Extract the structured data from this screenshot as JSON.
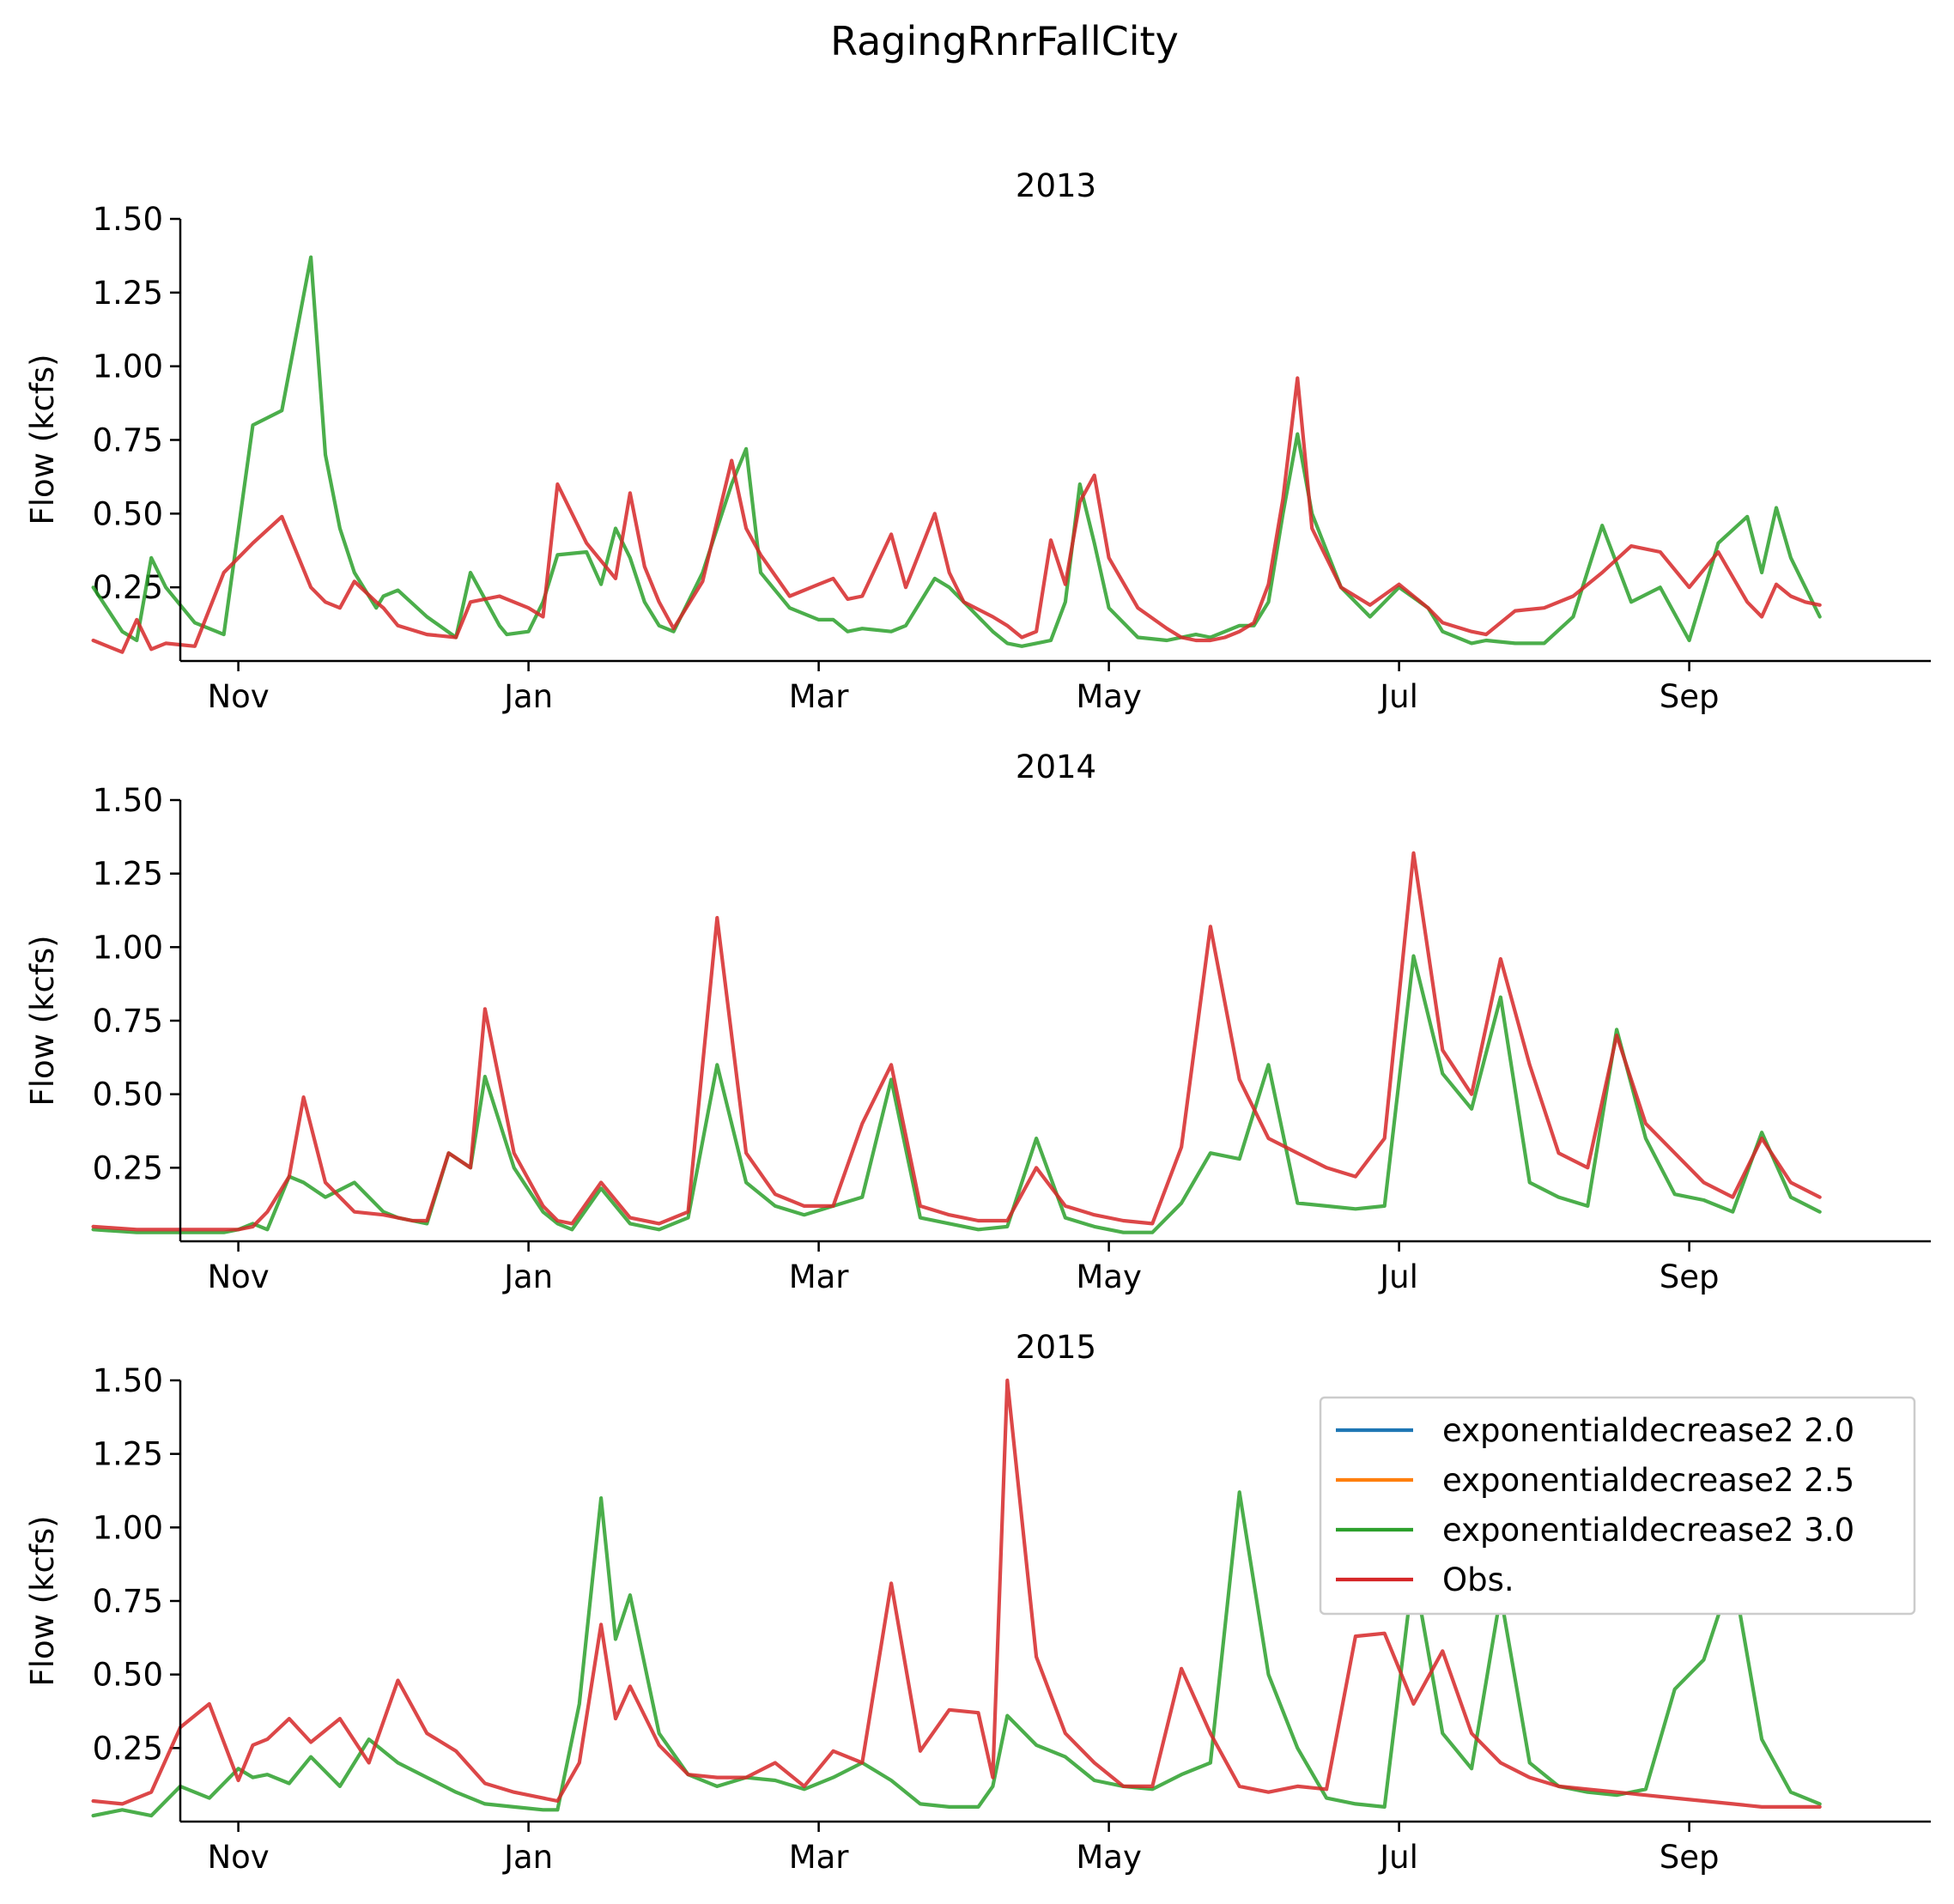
{
  "figure": {
    "suptitle": "RagingRnrFallCity"
  },
  "legend": {
    "location": "upper right of bottom panel",
    "entries": [
      {
        "label": "exponentialdecrease2 2.0",
        "color": "#1f77b4"
      },
      {
        "label": "exponentialdecrease2 2.5",
        "color": "#ff7f0e"
      },
      {
        "label": "exponentialdecrease2 3.0",
        "color": "#2ca02c"
      },
      {
        "label": "Obs.",
        "color": "#d62728"
      }
    ]
  },
  "chart_data": [
    {
      "type": "line",
      "title": "2013",
      "ylabel": "Flow (kcfs)",
      "xlabel": "",
      "ylim": [
        0,
        1.5
      ],
      "yticks": [
        "0.25",
        "0.50",
        "0.75",
        "1.00",
        "1.25",
        "1.50"
      ],
      "xticks": [
        "Nov",
        "Jan",
        "Mar",
        "May",
        "Jul",
        "Sep"
      ],
      "x_unit": "month index (0 = Oct 1)",
      "grid": false,
      "series": [
        {
          "name": "exponentialdecrease2 3.0",
          "color": "#2ca02c",
          "x": [
            0.0,
            0.2,
            0.3,
            0.4,
            0.5,
            0.7,
            0.9,
            1.1,
            1.3,
            1.5,
            1.6,
            1.7,
            1.8,
            1.95,
            2.0,
            2.1,
            2.3,
            2.5,
            2.6,
            2.8,
            2.85,
            3.0,
            3.1,
            3.2,
            3.4,
            3.5,
            3.6,
            3.7,
            3.8,
            3.9,
            4.0,
            4.2,
            4.4,
            4.5,
            4.6,
            4.8,
            5.0,
            5.1,
            5.2,
            5.3,
            5.5,
            5.6,
            5.8,
            5.9,
            6.0,
            6.2,
            6.3,
            6.4,
            6.5,
            6.6,
            6.7,
            6.8,
            6.9,
            7.0,
            7.2,
            7.4,
            7.5,
            7.6,
            7.7,
            7.8,
            7.9,
            8.0,
            8.1,
            8.2,
            8.3,
            8.4,
            8.6,
            8.8,
            9.0,
            9.2,
            9.3,
            9.5,
            9.6,
            9.8,
            10.0,
            10.2,
            10.4,
            10.6,
            10.8,
            11.0,
            11.2,
            11.4,
            11.5,
            11.6,
            11.7,
            11.8,
            11.9
          ],
          "values": [
            0.25,
            0.1,
            0.07,
            0.35,
            0.25,
            0.13,
            0.09,
            0.8,
            0.85,
            1.37,
            0.7,
            0.45,
            0.3,
            0.18,
            0.22,
            0.24,
            0.15,
            0.08,
            0.3,
            0.12,
            0.09,
            0.1,
            0.2,
            0.36,
            0.37,
            0.26,
            0.45,
            0.35,
            0.2,
            0.12,
            0.1,
            0.3,
            0.6,
            0.72,
            0.3,
            0.18,
            0.14,
            0.14,
            0.1,
            0.11,
            0.1,
            0.12,
            0.28,
            0.25,
            0.2,
            0.1,
            0.06,
            0.05,
            0.06,
            0.07,
            0.2,
            0.6,
            0.4,
            0.18,
            0.08,
            0.07,
            0.08,
            0.09,
            0.08,
            0.1,
            0.12,
            0.12,
            0.2,
            0.5,
            0.77,
            0.5,
            0.25,
            0.15,
            0.25,
            0.18,
            0.1,
            0.06,
            0.07,
            0.06,
            0.06,
            0.15,
            0.46,
            0.2,
            0.25,
            0.07,
            0.4,
            0.49,
            0.3,
            0.52,
            0.35,
            0.25,
            0.15
          ]
        },
        {
          "name": "Obs.",
          "color": "#d62728",
          "x": [
            0.0,
            0.2,
            0.3,
            0.4,
            0.5,
            0.7,
            0.9,
            1.1,
            1.3,
            1.5,
            1.6,
            1.7,
            1.8,
            1.95,
            2.0,
            2.1,
            2.3,
            2.5,
            2.6,
            2.8,
            2.85,
            3.0,
            3.1,
            3.2,
            3.4,
            3.5,
            3.6,
            3.7,
            3.8,
            3.9,
            4.0,
            4.2,
            4.4,
            4.5,
            4.6,
            4.8,
            5.0,
            5.1,
            5.2,
            5.3,
            5.5,
            5.6,
            5.8,
            5.9,
            6.0,
            6.2,
            6.3,
            6.4,
            6.5,
            6.6,
            6.7,
            6.8,
            6.9,
            7.0,
            7.2,
            7.4,
            7.5,
            7.6,
            7.7,
            7.8,
            7.9,
            8.0,
            8.1,
            8.2,
            8.3,
            8.4,
            8.6,
            8.8,
            9.0,
            9.2,
            9.3,
            9.5,
            9.6,
            9.8,
            10.0,
            10.2,
            10.4,
            10.6,
            10.8,
            11.0,
            11.2,
            11.4,
            11.5,
            11.6,
            11.7,
            11.8,
            11.9
          ],
          "values": [
            0.07,
            0.03,
            0.14,
            0.04,
            0.06,
            0.05,
            0.3,
            0.4,
            0.49,
            0.25,
            0.2,
            0.18,
            0.27,
            0.2,
            0.18,
            0.12,
            0.09,
            0.08,
            0.2,
            0.22,
            0.21,
            0.18,
            0.15,
            0.6,
            0.4,
            0.34,
            0.28,
            0.57,
            0.32,
            0.2,
            0.11,
            0.27,
            0.68,
            0.45,
            0.36,
            0.22,
            0.26,
            0.28,
            0.21,
            0.22,
            0.43,
            0.25,
            0.5,
            0.3,
            0.2,
            0.15,
            0.12,
            0.08,
            0.1,
            0.41,
            0.26,
            0.54,
            0.63,
            0.35,
            0.18,
            0.11,
            0.08,
            0.07,
            0.07,
            0.08,
            0.1,
            0.13,
            0.26,
            0.55,
            0.96,
            0.45,
            0.25,
            0.19,
            0.26,
            0.18,
            0.13,
            0.1,
            0.09,
            0.17,
            0.18,
            0.22,
            0.3,
            0.39,
            0.37,
            0.25,
            0.37,
            0.2,
            0.15,
            0.26,
            0.22,
            0.2,
            0.19
          ]
        }
      ]
    },
    {
      "type": "line",
      "title": "2014",
      "ylabel": "Flow (kcfs)",
      "xlabel": "",
      "ylim": [
        0,
        1.5
      ],
      "yticks": [
        "0.25",
        "0.50",
        "0.75",
        "1.00",
        "1.25",
        "1.50"
      ],
      "xticks": [
        "Nov",
        "Jan",
        "Mar",
        "May",
        "Jul",
        "Sep"
      ],
      "x_unit": "month index (0 = Oct 1)",
      "grid": false,
      "series": [
        {
          "name": "exponentialdecrease2 3.0",
          "color": "#2ca02c",
          "x": [
            0.0,
            0.3,
            0.6,
            0.9,
            1.0,
            1.1,
            1.2,
            1.35,
            1.45,
            1.6,
            1.8,
            2.0,
            2.1,
            2.2,
            2.3,
            2.45,
            2.6,
            2.7,
            2.9,
            3.1,
            3.2,
            3.3,
            3.5,
            3.7,
            3.9,
            4.1,
            4.3,
            4.5,
            4.7,
            4.9,
            5.1,
            5.3,
            5.5,
            5.7,
            5.9,
            6.1,
            6.3,
            6.5,
            6.7,
            6.9,
            7.1,
            7.3,
            7.5,
            7.7,
            7.9,
            8.1,
            8.3,
            8.5,
            8.7,
            8.9,
            9.1,
            9.3,
            9.5,
            9.7,
            9.9,
            10.1,
            10.3,
            10.5,
            10.7,
            10.9,
            11.1,
            11.3,
            11.5,
            11.7,
            11.9
          ],
          "values": [
            0.04,
            0.03,
            0.03,
            0.03,
            0.04,
            0.06,
            0.04,
            0.22,
            0.2,
            0.15,
            0.2,
            0.1,
            0.08,
            0.07,
            0.06,
            0.3,
            0.25,
            0.56,
            0.25,
            0.1,
            0.06,
            0.04,
            0.18,
            0.06,
            0.04,
            0.08,
            0.6,
            0.2,
            0.12,
            0.09,
            0.12,
            0.15,
            0.55,
            0.08,
            0.06,
            0.04,
            0.05,
            0.35,
            0.08,
            0.05,
            0.03,
            0.03,
            0.13,
            0.3,
            0.28,
            0.6,
            0.13,
            0.12,
            0.11,
            0.12,
            0.97,
            0.57,
            0.45,
            0.83,
            0.2,
            0.15,
            0.12,
            0.72,
            0.35,
            0.16,
            0.14,
            0.1,
            0.37,
            0.15,
            0.1
          ]
        },
        {
          "name": "Obs.",
          "color": "#d62728",
          "x": [
            0.0,
            0.3,
            0.6,
            0.9,
            1.0,
            1.1,
            1.2,
            1.35,
            1.45,
            1.6,
            1.8,
            2.0,
            2.1,
            2.2,
            2.3,
            2.45,
            2.6,
            2.7,
            2.9,
            3.1,
            3.2,
            3.3,
            3.5,
            3.7,
            3.9,
            4.1,
            4.3,
            4.5,
            4.7,
            4.9,
            5.1,
            5.3,
            5.5,
            5.7,
            5.9,
            6.1,
            6.3,
            6.5,
            6.7,
            6.9,
            7.1,
            7.3,
            7.5,
            7.7,
            7.9,
            8.1,
            8.3,
            8.5,
            8.7,
            8.9,
            9.1,
            9.3,
            9.5,
            9.7,
            9.9,
            10.1,
            10.3,
            10.5,
            10.7,
            10.9,
            11.1,
            11.3,
            11.5,
            11.7,
            11.9
          ],
          "values": [
            0.05,
            0.04,
            0.04,
            0.04,
            0.04,
            0.05,
            0.1,
            0.22,
            0.49,
            0.2,
            0.1,
            0.09,
            0.08,
            0.07,
            0.07,
            0.3,
            0.25,
            0.79,
            0.3,
            0.12,
            0.07,
            0.06,
            0.2,
            0.08,
            0.06,
            0.1,
            1.1,
            0.3,
            0.16,
            0.12,
            0.12,
            0.4,
            0.6,
            0.12,
            0.09,
            0.07,
            0.07,
            0.25,
            0.12,
            0.09,
            0.07,
            0.06,
            0.32,
            1.07,
            0.55,
            0.35,
            0.3,
            0.25,
            0.22,
            0.35,
            1.32,
            0.65,
            0.5,
            0.96,
            0.6,
            0.3,
            0.25,
            0.7,
            0.4,
            0.3,
            0.2,
            0.15,
            0.35,
            0.2,
            0.15
          ]
        }
      ]
    },
    {
      "type": "line",
      "title": "2015",
      "ylabel": "Flow (kcfs)",
      "xlabel": "",
      "ylim": [
        0,
        1.5
      ],
      "yticks": [
        "0.25",
        "0.50",
        "0.75",
        "1.00",
        "1.25",
        "1.50"
      ],
      "xticks": [
        "Nov",
        "Jan",
        "Mar",
        "May",
        "Jul",
        "Sep"
      ],
      "x_unit": "month index (0 = Oct 1)",
      "grid": false,
      "series": [
        {
          "name": "exponentialdecrease2 3.0",
          "color": "#2ca02c",
          "x": [
            0.0,
            0.2,
            0.4,
            0.6,
            0.8,
            1.0,
            1.1,
            1.2,
            1.35,
            1.5,
            1.7,
            1.9,
            2.1,
            2.3,
            2.5,
            2.7,
            2.9,
            3.1,
            3.2,
            3.35,
            3.5,
            3.6,
            3.7,
            3.9,
            4.1,
            4.3,
            4.5,
            4.7,
            4.9,
            5.1,
            5.3,
            5.5,
            5.7,
            5.9,
            6.1,
            6.2,
            6.3,
            6.5,
            6.7,
            6.9,
            7.1,
            7.3,
            7.5,
            7.7,
            7.9,
            8.1,
            8.3,
            8.5,
            8.7,
            8.9,
            9.1,
            9.3,
            9.5,
            9.7,
            9.9,
            10.1,
            10.3,
            10.5,
            10.7,
            10.9,
            11.1,
            11.3,
            11.5,
            11.7,
            11.9
          ],
          "values": [
            0.02,
            0.04,
            0.02,
            0.12,
            0.08,
            0.18,
            0.15,
            0.16,
            0.13,
            0.22,
            0.12,
            0.28,
            0.2,
            0.15,
            0.1,
            0.06,
            0.05,
            0.04,
            0.04,
            0.4,
            1.1,
            0.62,
            0.77,
            0.3,
            0.16,
            0.12,
            0.15,
            0.14,
            0.11,
            0.15,
            0.2,
            0.14,
            0.06,
            0.05,
            0.05,
            0.12,
            0.36,
            0.26,
            0.22,
            0.14,
            0.12,
            0.11,
            0.16,
            0.2,
            1.12,
            0.5,
            0.25,
            0.08,
            0.06,
            0.05,
            0.86,
            0.3,
            0.18,
            0.77,
            0.2,
            0.12,
            0.1,
            0.09,
            0.11,
            0.45,
            0.55,
            0.85,
            0.28,
            0.1,
            0.06
          ]
        },
        {
          "name": "Obs.",
          "color": "#d62728",
          "x": [
            0.0,
            0.2,
            0.4,
            0.6,
            0.8,
            1.0,
            1.1,
            1.2,
            1.35,
            1.5,
            1.7,
            1.9,
            2.1,
            2.3,
            2.5,
            2.7,
            2.9,
            3.1,
            3.2,
            3.35,
            3.5,
            3.6,
            3.7,
            3.9,
            4.1,
            4.3,
            4.5,
            4.7,
            4.9,
            5.1,
            5.3,
            5.5,
            5.7,
            5.9,
            6.1,
            6.2,
            6.3,
            6.5,
            6.7,
            6.9,
            7.1,
            7.3,
            7.5,
            7.7,
            7.9,
            8.1,
            8.3,
            8.5,
            8.7,
            8.9,
            9.1,
            9.3,
            9.5,
            9.7,
            9.9,
            10.1,
            10.3,
            10.5,
            10.7,
            10.9,
            11.1,
            11.3,
            11.5,
            11.7,
            11.9
          ],
          "values": [
            0.07,
            0.06,
            0.1,
            0.32,
            0.4,
            0.14,
            0.26,
            0.28,
            0.35,
            0.27,
            0.35,
            0.2,
            0.48,
            0.3,
            0.24,
            0.13,
            0.1,
            0.08,
            0.07,
            0.2,
            0.67,
            0.35,
            0.46,
            0.26,
            0.16,
            0.15,
            0.15,
            0.2,
            0.12,
            0.24,
            0.2,
            0.81,
            0.24,
            0.38,
            0.37,
            0.15,
            1.5,
            0.56,
            0.3,
            0.2,
            0.12,
            0.12,
            0.52,
            0.3,
            0.12,
            0.1,
            0.12,
            0.11,
            0.63,
            0.64,
            0.4,
            0.58,
            0.3,
            0.2,
            0.15,
            0.12,
            0.11,
            0.1,
            0.09,
            0.08,
            0.07,
            0.06,
            0.05,
            0.05,
            0.05
          ]
        }
      ]
    }
  ]
}
